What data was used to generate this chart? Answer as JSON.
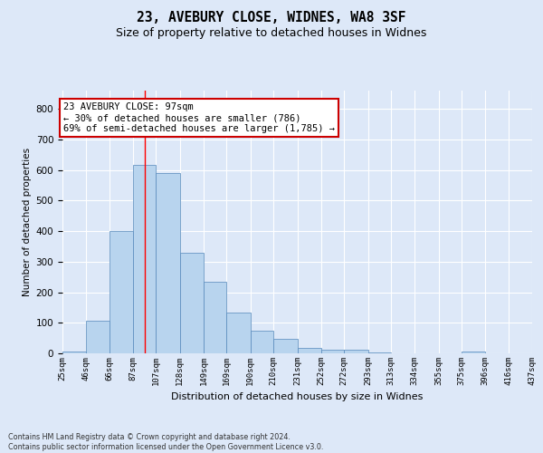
{
  "title1": "23, AVEBURY CLOSE, WIDNES, WA8 3SF",
  "title2": "Size of property relative to detached houses in Widnes",
  "xlabel": "Distribution of detached houses by size in Widnes",
  "ylabel": "Number of detached properties",
  "footer1": "Contains HM Land Registry data © Crown copyright and database right 2024.",
  "footer2": "Contains public sector information licensed under the Open Government Licence v3.0.",
  "annotation_line1": "23 AVEBURY CLOSE: 97sqm",
  "annotation_line2": "← 30% of detached houses are smaller (786)",
  "annotation_line3": "69% of semi-detached houses are larger (1,785) →",
  "bar_vals": [
    5,
    107,
    401,
    617,
    590,
    328,
    235,
    133,
    75,
    48,
    17,
    12,
    12,
    4,
    0,
    0,
    0,
    7,
    0,
    0
  ],
  "bin_edges": [
    25,
    46,
    66,
    87,
    107,
    128,
    149,
    169,
    190,
    210,
    231,
    252,
    272,
    293,
    313,
    334,
    355,
    375,
    396,
    416,
    437
  ],
  "bin_labels": [
    "25sqm",
    "46sqm",
    "66sqm",
    "87sqm",
    "107sqm",
    "128sqm",
    "149sqm",
    "169sqm",
    "190sqm",
    "210sqm",
    "231sqm",
    "252sqm",
    "272sqm",
    "293sqm",
    "313sqm",
    "334sqm",
    "355sqm",
    "375sqm",
    "396sqm",
    "416sqm",
    "437sqm"
  ],
  "bar_color": "#b8d4ee",
  "bar_edge_color": "#5588bb",
  "red_line_x": 97,
  "ylim": [
    0,
    860
  ],
  "yticks": [
    0,
    100,
    200,
    300,
    400,
    500,
    600,
    700,
    800
  ],
  "bg_color": "#dde8f8",
  "grid_color": "#ffffff",
  "title1_fontsize": 10.5,
  "title2_fontsize": 9,
  "ann_box_edge": "#cc0000",
  "ann_box_face": "#ffffff"
}
